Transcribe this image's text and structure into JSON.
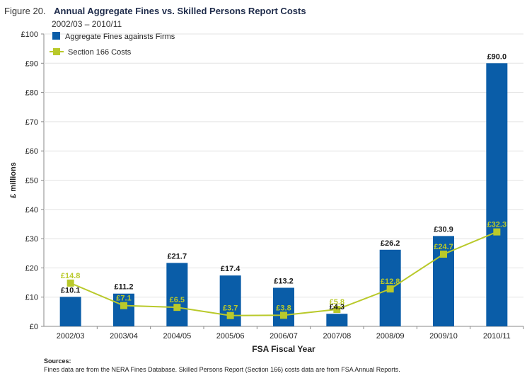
{
  "figure": {
    "label": "Figure 20.",
    "title": "Annual Aggregate Fines vs. Skilled Persons Report Costs",
    "subtitle": "2002/03 – 2010/11"
  },
  "colors": {
    "bar": "#0a5da8",
    "line": "#b9c92a",
    "grid": "#e3e3e3",
    "bar_label": "#1a1a1a",
    "line_label": "#b9c92a"
  },
  "chart_data": {
    "type": "bar",
    "categories": [
      "2002/03",
      "2003/04",
      "2004/05",
      "2005/06",
      "2006/07",
      "2007/08",
      "2008/09",
      "2009/10",
      "2010/11"
    ],
    "series": [
      {
        "name": "Aggregate Fines againsts Firms",
        "kind": "bar",
        "values": [
          10.1,
          11.2,
          21.7,
          17.4,
          13.2,
          4.3,
          26.2,
          30.9,
          90.0
        ],
        "labels": [
          "£10.1",
          "£11.2",
          "£21.7",
          "£17.4",
          "£13.2",
          "£4.3",
          "£26.2",
          "£30.9",
          "£90.0"
        ]
      },
      {
        "name": "Section 166 Costs",
        "kind": "line",
        "values": [
          14.8,
          7.1,
          6.5,
          3.7,
          3.8,
          5.8,
          12.8,
          24.7,
          32.3
        ],
        "labels": [
          "£14.8",
          "£7.1",
          "£6.5",
          "£3.7",
          "£3.8",
          "£5.8",
          "£12.8",
          "£24.7",
          "£32.3"
        ]
      }
    ],
    "xlabel": "FSA Fiscal Year",
    "ylabel": "£ millions",
    "ylim": [
      0,
      100
    ],
    "yticks": [
      "£0",
      "£10",
      "£20",
      "£30",
      "£40",
      "£50",
      "£60",
      "£70",
      "£80",
      "£90",
      "£100"
    ],
    "grid": true,
    "legend_position": "top-left"
  },
  "footer": {
    "sources_title": "Sources:",
    "sources_text": "Fines data are from the NERA Fines Database. Skilled Persons Report (Section 166) costs data are from FSA Annual Reports."
  }
}
